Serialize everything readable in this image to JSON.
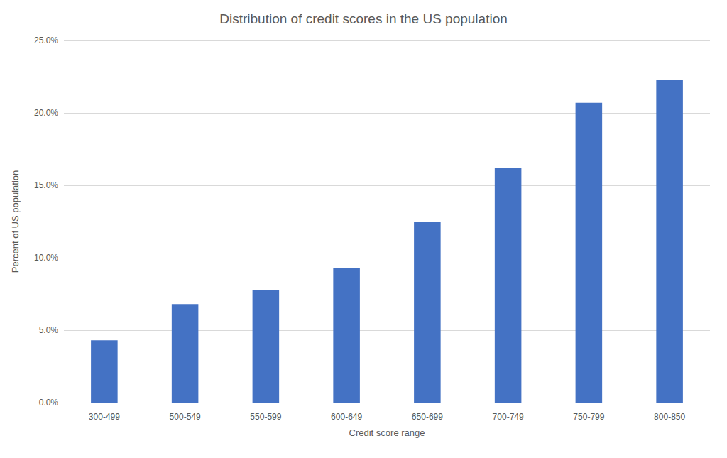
{
  "chart_data": {
    "type": "bar",
    "title": "Distribution of credit scores in the US population",
    "x_label": "Credit score range",
    "y_label": "Percent of US population",
    "categories": [
      "300-499",
      "500-549",
      "550-599",
      "600-649",
      "650-699",
      "700-749",
      "750-799",
      "800-850"
    ],
    "values": [
      4.3,
      6.8,
      7.8,
      9.3,
      12.5,
      16.2,
      20.7,
      22.3
    ],
    "color": "#4472c4",
    "ylim": [
      0,
      25
    ],
    "yticks": [
      {
        "value": 0,
        "label": "0.0%"
      },
      {
        "value": 5,
        "label": "5.0%"
      },
      {
        "value": 10,
        "label": "10.0%"
      },
      {
        "value": 15,
        "label": "15.0%"
      },
      {
        "value": 20,
        "label": "20.0%"
      },
      {
        "value": 25,
        "label": "25.0%"
      }
    ],
    "grid": true
  }
}
